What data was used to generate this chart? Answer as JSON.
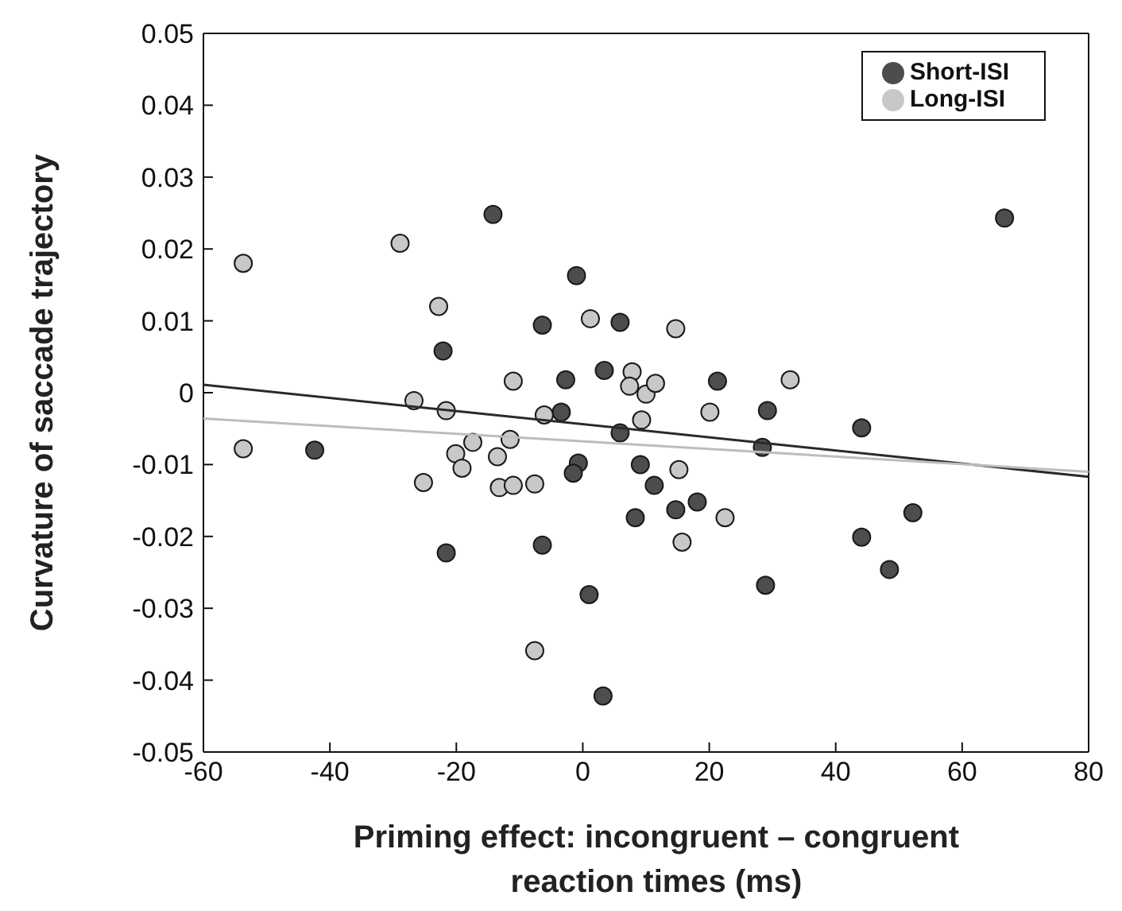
{
  "chart_data": {
    "type": "scatter",
    "xlabel": "Priming effect: incongruent – congruent reaction times (ms)",
    "ylabel": "Curvature of saccade trajectory",
    "xlim": [
      -60,
      80
    ],
    "xticks": [
      -60,
      -40,
      -20,
      0,
      20,
      40,
      60,
      80
    ],
    "ylim": [
      -0.05,
      0.05
    ],
    "yticks": [
      -0.05,
      -0.04,
      -0.03,
      -0.02,
      -0.01,
      0,
      0.01,
      0.02,
      0.03,
      0.04,
      0.05
    ],
    "legend": "top right",
    "series": [
      {
        "name": "Short-ISI",
        "color": "#4d4d4d",
        "marker": "circle",
        "x": [
          -14.2,
          -1,
          -6.4,
          5.9,
          -22.1,
          -2.7,
          3.4,
          -3.4,
          5.9,
          -42.4,
          -0.7,
          -1.5,
          9.1,
          11.3,
          8.3,
          -21.6,
          -6.4,
          1,
          3.2,
          66.7,
          21.3,
          29.2,
          44.1,
          28.4,
          18.1,
          14.7,
          52.2,
          44.1,
          48.5,
          28.9
        ],
        "values": [
          0.0248,
          0.0163,
          0.0094,
          0.0098,
          0.0058,
          0.0018,
          0.0031,
          -0.0027,
          -0.0056,
          -0.008,
          -0.0098,
          -0.0112,
          -0.01,
          -0.0129,
          -0.0174,
          -0.0223,
          -0.0212,
          -0.0281,
          -0.0422,
          0.0243,
          0.0016,
          -0.0025,
          -0.0049,
          -0.0076,
          -0.0152,
          -0.0163,
          -0.0167,
          -0.0201,
          -0.0246,
          -0.0268
        ]
      },
      {
        "name": "Long-ISI",
        "color": "#c8c8c8",
        "marker": "circle",
        "x": [
          -53.7,
          -28.9,
          -22.8,
          1.2,
          -11,
          7.8,
          7.4,
          10,
          11.5,
          -26.7,
          -21.6,
          -6.1,
          9.3,
          -53.7,
          -17.4,
          -20.1,
          -19.1,
          -11.5,
          -13.5,
          -25.2,
          -13.2,
          -11,
          -7.6,
          -7.6,
          14.7,
          32.8,
          20.1,
          15.2,
          22.5,
          15.7
        ],
        "values": [
          0.018,
          0.0208,
          0.012,
          0.0103,
          0.0016,
          0.0029,
          0.0009,
          -0.0002,
          0.0013,
          -0.0011,
          -0.0025,
          -0.0031,
          -0.0038,
          -0.0078,
          -0.0069,
          -0.0085,
          -0.0105,
          -0.0065,
          -0.0089,
          -0.0125,
          -0.0132,
          -0.0129,
          -0.0127,
          -0.0359,
          0.0089,
          0.0018,
          -0.0027,
          -0.0107,
          -0.0174,
          -0.0208
        ]
      },
      {
        "type": "line",
        "color": "#2a2a2a",
        "x": [
          -60,
          80
        ],
        "values": [
          0.0011,
          -0.0117
        ]
      },
      {
        "type": "line",
        "color": "#bdbdbd",
        "x": [
          -60,
          80
        ],
        "values": [
          -0.0036,
          -0.011
        ]
      }
    ]
  }
}
